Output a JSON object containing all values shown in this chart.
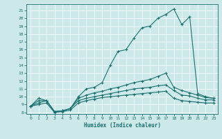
{
  "xlabel": "Humidex (Indice chaleur)",
  "bg_color": "#cde8e8",
  "line_color": "#1a7070",
  "xlim": [
    -0.5,
    23.5
  ],
  "ylim": [
    7.8,
    21.8
  ],
  "xticks": [
    0,
    1,
    2,
    3,
    4,
    5,
    6,
    7,
    8,
    9,
    10,
    11,
    12,
    13,
    14,
    15,
    16,
    17,
    18,
    19,
    20,
    21,
    22,
    23
  ],
  "yticks": [
    8,
    9,
    10,
    11,
    12,
    13,
    14,
    15,
    16,
    17,
    18,
    19,
    20,
    21
  ],
  "line1_x": [
    0,
    1,
    2,
    3,
    4,
    5,
    6,
    7,
    8,
    9,
    10,
    11,
    12,
    13,
    14,
    15,
    16,
    17,
    18,
    19,
    20,
    21,
    22,
    23
  ],
  "line1_y": [
    8.8,
    9.8,
    9.5,
    8.1,
    8.2,
    8.5,
    10.0,
    11.0,
    11.2,
    11.8,
    14.0,
    15.8,
    16.0,
    17.5,
    18.8,
    19.0,
    20.0,
    20.5,
    21.2,
    19.2,
    20.2,
    10.4,
    10.0,
    9.8
  ],
  "line2_x": [
    0,
    1,
    2,
    3,
    4,
    5,
    6,
    7,
    8,
    9,
    10,
    11,
    12,
    13,
    14,
    15,
    16,
    17,
    18,
    19,
    20,
    21,
    22,
    23
  ],
  "line2_y": [
    8.8,
    9.5,
    9.5,
    8.1,
    8.2,
    8.5,
    9.8,
    10.2,
    10.5,
    10.7,
    11.0,
    11.2,
    11.5,
    11.8,
    12.0,
    12.2,
    12.6,
    13.0,
    11.2,
    10.8,
    10.5,
    10.2,
    9.9,
    9.8
  ],
  "line3_x": [
    0,
    1,
    2,
    3,
    4,
    5,
    6,
    7,
    8,
    9,
    10,
    11,
    12,
    13,
    14,
    15,
    16,
    17,
    18,
    19,
    20,
    21,
    22,
    23
  ],
  "line3_y": [
    8.8,
    9.2,
    9.5,
    8.1,
    8.2,
    8.5,
    9.5,
    9.8,
    10.0,
    10.2,
    10.4,
    10.6,
    10.8,
    11.0,
    11.1,
    11.2,
    11.4,
    11.5,
    10.8,
    10.2,
    10.1,
    9.8,
    9.6,
    9.6
  ],
  "line4_x": [
    0,
    1,
    2,
    3,
    4,
    5,
    6,
    7,
    8,
    9,
    10,
    11,
    12,
    13,
    14,
    15,
    16,
    17,
    18,
    19,
    20,
    21,
    22,
    23
  ],
  "line4_y": [
    8.8,
    9.0,
    9.2,
    8.0,
    8.1,
    8.3,
    9.2,
    9.5,
    9.7,
    9.9,
    10.0,
    10.1,
    10.2,
    10.3,
    10.4,
    10.5,
    10.6,
    10.7,
    9.8,
    9.5,
    9.4,
    9.3,
    9.2,
    9.2
  ]
}
